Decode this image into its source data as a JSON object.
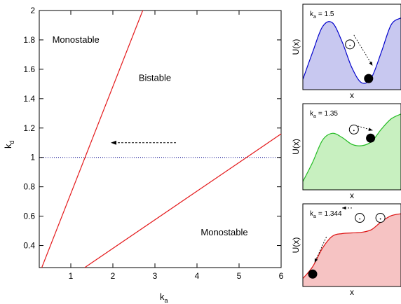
{
  "chart_data": [
    {
      "type": "line",
      "xlabel": "k",
      "xlabel_sub": "a",
      "ylabel": "k",
      "ylabel_sub": "d",
      "xlim": [
        0.25,
        6
      ],
      "ylim": [
        0.25,
        2
      ],
      "xticks": [
        1,
        2,
        3,
        4,
        5,
        6
      ],
      "yticks": [
        0.4,
        0.6,
        0.8,
        1,
        1.2,
        1.4,
        1.6,
        1.8,
        2
      ],
      "ytick_labels": [
        "0.4",
        "0.6",
        "0.8",
        "1",
        "1.2",
        "1.4",
        "1.6",
        "1.8",
        "2"
      ],
      "grid": false,
      "colors": {
        "boundary": "#e41a1c",
        "reference": "#00008b"
      },
      "series": [
        {
          "x": [
            0.31,
            2.71
          ],
          "y": [
            0.25,
            2.0
          ]
        },
        {
          "x": [
            1.33,
            6.0
          ],
          "y": [
            0.25,
            1.16
          ]
        }
      ],
      "reference_line": {
        "y": 1
      },
      "annotations": [
        {
          "text": "Monostable",
          "x": 1.12,
          "y": 1.78
        },
        {
          "text": "Bistable",
          "x": 3.0,
          "y": 1.52
        },
        {
          "text": "Monostable",
          "x": 4.65,
          "y": 0.47
        }
      ],
      "arrow": {
        "from": [
          3.5,
          1.1
        ],
        "to": [
          1.95,
          1.1
        ]
      }
    },
    {
      "type": "area",
      "label": "k",
      "label_sub": "a",
      "label_value": "= 1.5",
      "xlabel": "x",
      "ylabel": "U(x)",
      "fill": "#c8c8f0",
      "stroke": "#0000cc",
      "x": [
        0,
        0.1,
        0.2,
        0.3,
        0.4,
        0.5,
        0.6,
        0.7,
        0.8,
        0.9,
        1.0
      ],
      "y": [
        0.05,
        0.45,
        0.82,
        0.88,
        0.6,
        0.22,
        0.0,
        0.08,
        0.45,
        0.85,
        0.95
      ]
    },
    {
      "type": "area",
      "label": "k",
      "label_sub": "a",
      "label_value": "= 1.35",
      "xlabel": "x",
      "ylabel": "U(x)",
      "fill": "#c8f0c0",
      "stroke": "#22bb22",
      "x": [
        0,
        0.1,
        0.2,
        0.3,
        0.4,
        0.5,
        0.6,
        0.7,
        0.8,
        0.9,
        1.0
      ],
      "y": [
        0.02,
        0.3,
        0.62,
        0.72,
        0.66,
        0.56,
        0.54,
        0.6,
        0.78,
        0.93,
        1.0
      ]
    },
    {
      "type": "area",
      "label": "k",
      "label_sub": "a",
      "label_value": "= 1.344",
      "xlabel": "x",
      "ylabel": "U(x)",
      "fill": "#f6c3c3",
      "stroke": "#dd1111",
      "x": [
        0,
        0.1,
        0.2,
        0.3,
        0.4,
        0.5,
        0.6,
        0.7,
        0.8,
        0.9,
        1.0
      ],
      "y": [
        0.02,
        0.2,
        0.48,
        0.66,
        0.7,
        0.71,
        0.72,
        0.76,
        0.88,
        0.97,
        1.0
      ]
    }
  ]
}
